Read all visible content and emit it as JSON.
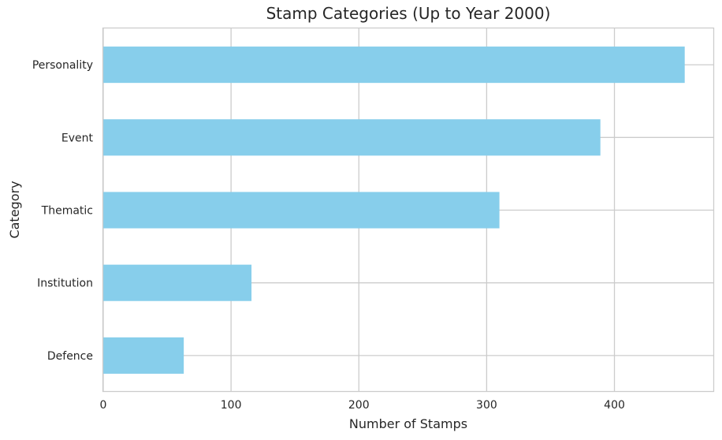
{
  "chart_data": {
    "type": "bar",
    "orientation": "horizontal",
    "title": "Stamp Categories (Up to Year 2000)",
    "xlabel": "Number of Stamps",
    "ylabel": "Category",
    "categories": [
      "Personality",
      "Event",
      "Thematic",
      "Institution",
      "Defence"
    ],
    "values": [
      455,
      389,
      310,
      116,
      63
    ],
    "xlim": [
      0,
      478
    ],
    "xticks": [
      0,
      100,
      200,
      300,
      400
    ],
    "grid": true,
    "legend": "none",
    "bar_color": "#87CEEB",
    "grid_color": "#cccccc",
    "frame_color": "#cccccc",
    "text_color": "#262626"
  }
}
